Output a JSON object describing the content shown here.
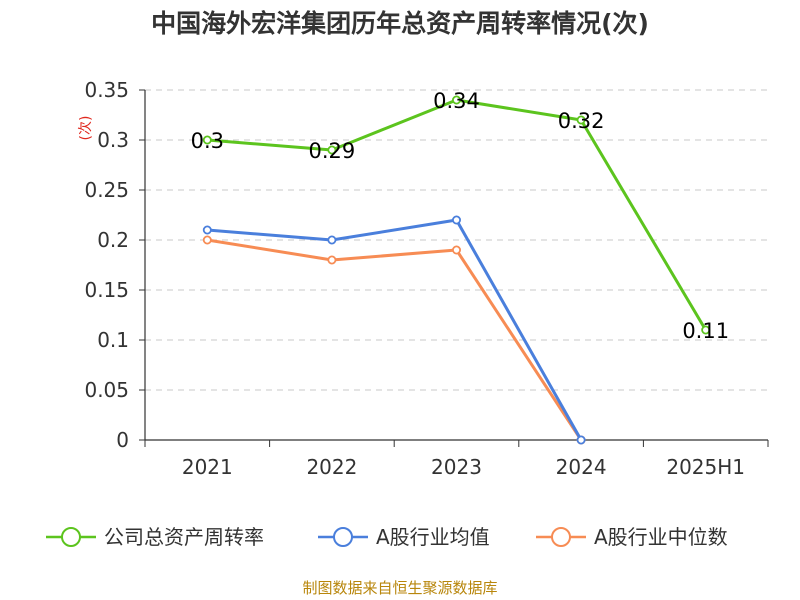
{
  "chart_data": {
    "type": "line",
    "title": "中国海外宏洋集团历年总资产周转率情况(次)",
    "ylabel": "(次)",
    "xlabel": "",
    "categories": [
      "2021",
      "2022",
      "2023",
      "2024",
      "2025H1"
    ],
    "ylim": [
      0,
      0.35
    ],
    "yticks": [
      "0",
      "0.05",
      "0.1",
      "0.15",
      "0.2",
      "0.25",
      "0.3",
      "0.35"
    ],
    "grid": true,
    "legend_position": "bottom",
    "series": [
      {
        "name": "公司总资产周转率",
        "color": "#5cc41e",
        "values": [
          0.3,
          0.29,
          0.34,
          0.32,
          0.11
        ],
        "show_labels": true
      },
      {
        "name": "A股行业均值",
        "color": "#4a7fdc",
        "values": [
          0.21,
          0.2,
          0.22,
          0,
          null
        ],
        "show_labels": false
      },
      {
        "name": "A股行业中位数",
        "color": "#f78c54",
        "values": [
          0.2,
          0.18,
          0.19,
          0,
          null
        ],
        "show_labels": false
      }
    ],
    "data_labels": [
      "0.3",
      "0.29",
      "0.34",
      "0.32",
      "0.11"
    ]
  },
  "source": "制图数据来自恒生聚源数据库"
}
